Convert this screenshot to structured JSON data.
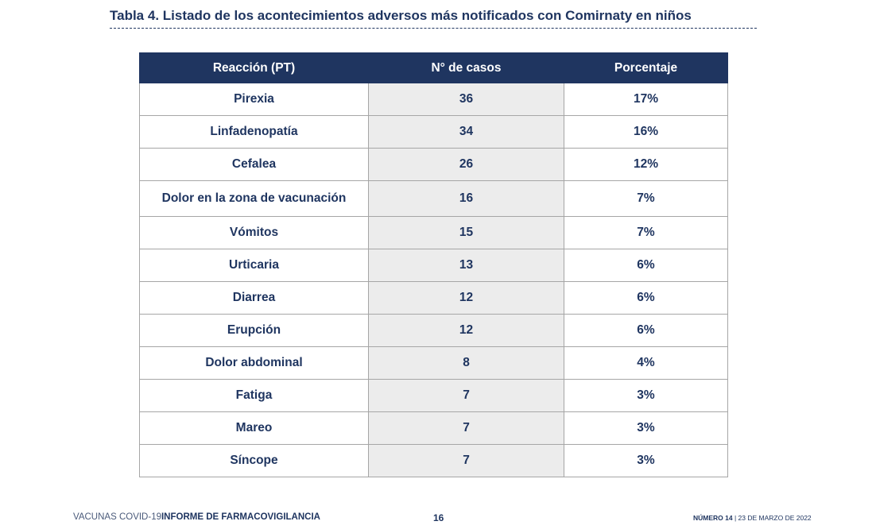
{
  "title": "Tabla 4. Listado de los acontecimientos adversos más notificados con Comirnaty en niños",
  "table": {
    "headers": [
      "Reacción (PT)",
      "N° de casos",
      "Porcentaje"
    ],
    "rows": [
      {
        "reaction": "Pirexia",
        "cases": "36",
        "pct": "17%"
      },
      {
        "reaction": "Linfadenopatía",
        "cases": "34",
        "pct": "16%"
      },
      {
        "reaction": "Cefalea",
        "cases": "26",
        "pct": "12%"
      },
      {
        "reaction": "Dolor en la zona de vacunación",
        "cases": "16",
        "pct": "7%"
      },
      {
        "reaction": "Vómitos",
        "cases": "15",
        "pct": "7%"
      },
      {
        "reaction": "Urticaria",
        "cases": "13",
        "pct": "6%"
      },
      {
        "reaction": "Diarrea",
        "cases": "12",
        "pct": "6%"
      },
      {
        "reaction": "Erupción",
        "cases": "12",
        "pct": "6%"
      },
      {
        "reaction": "Dolor abdominal",
        "cases": "8",
        "pct": "4%"
      },
      {
        "reaction": "Fatiga",
        "cases": "7",
        "pct": "3%"
      },
      {
        "reaction": "Mareo",
        "cases": "7",
        "pct": "3%"
      },
      {
        "reaction": "Síncope",
        "cases": "7",
        "pct": "3%"
      }
    ]
  },
  "footer": {
    "left_light": "VACUNAS COVID-19",
    "left_strong": "INFORME DE FARMACOVIGILANCIA",
    "page": "16",
    "right_strong": "NÚMERO 14",
    "right_rest": " | 23 DE MARZO DE 2022"
  },
  "colors": {
    "header_bg": "#1f3560",
    "text": "#1f3560",
    "shade": "#ececec",
    "border": "#a6a6a6"
  }
}
